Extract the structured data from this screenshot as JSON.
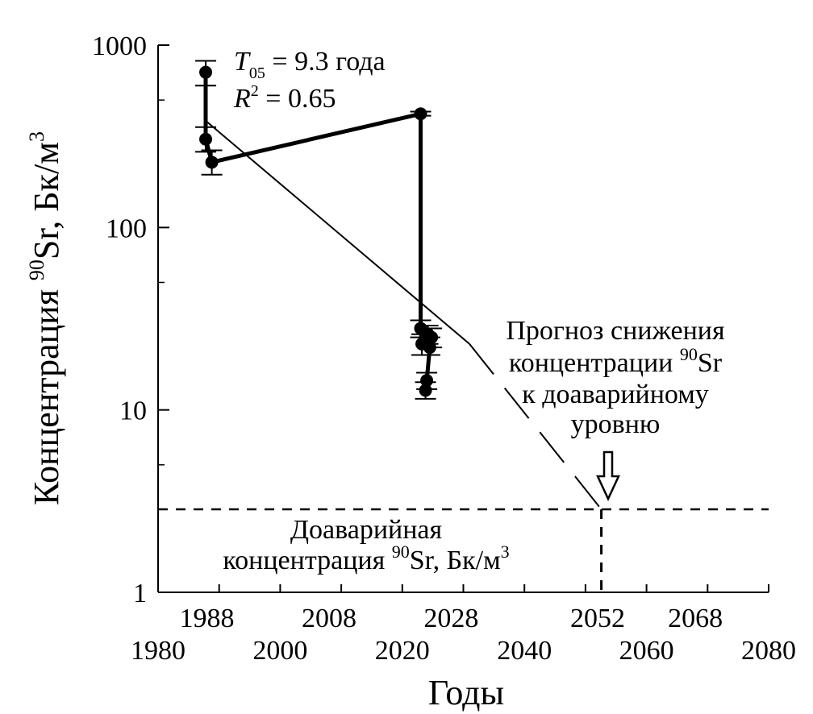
{
  "chart_data": {
    "type": "scatter",
    "title": "",
    "xlabel": "Годы",
    "ylabel": "Концентрация ⁹⁰Sr, Бк/м³",
    "y_scale": "log",
    "xlim": [
      1980,
      2080
    ],
    "ylim": [
      1,
      1000
    ],
    "grid": false,
    "x_ticks_lower": [
      "1980",
      "2000",
      "2020",
      "2040",
      "2060",
      "2080"
    ],
    "x_ticks_upper": [
      "1988",
      "2008",
      "2028",
      "2052",
      "2068"
    ],
    "y_ticks": [
      "1",
      "10",
      "100",
      "1000"
    ],
    "series": [
      {
        "points": [
          {
            "x": 1987.8,
            "y": 710,
            "err_low": 600,
            "err_high": 820
          },
          {
            "x": 1987.8,
            "y": 305,
            "err_low": 260,
            "err_high": 355
          },
          {
            "x": 1988.8,
            "y": 228,
            "err_low": 195,
            "err_high": 265
          },
          {
            "x": 2023.0,
            "y": 420,
            "err_low": 410,
            "err_high": 432
          },
          {
            "x": 2023.0,
            "y": 28,
            "err_low": 25,
            "err_high": 31
          },
          {
            "x": 2023.2,
            "y": 23,
            "err_low": 20,
            "err_high": 26
          },
          {
            "x": 2024.2,
            "y": 26,
            "err_low": 23,
            "err_high": 29
          },
          {
            "x": 2024.8,
            "y": 25,
            "err_low": 22,
            "err_high": 28
          },
          {
            "x": 2024.5,
            "y": 22,
            "err_low": 20,
            "err_high": 25
          },
          {
            "x": 2024.0,
            "y": 14.5,
            "err_low": 13,
            "err_high": 16
          },
          {
            "x": 2023.8,
            "y": 12.8,
            "err_low": 11.5,
            "err_high": 14.2
          }
        ],
        "connect_order": [
          0,
          1,
          2,
          3,
          4,
          5,
          6,
          7,
          8,
          9,
          10
        ]
      }
    ],
    "fit_line": {
      "x": [
        1988,
        2031
      ],
      "y": [
        380,
        23
      ]
    },
    "forecast_line": {
      "x": [
        2031,
        2052.6
      ],
      "y": [
        23,
        2.85
      ]
    },
    "preaccident_level": 2.85,
    "forecast_year": 2052.6,
    "annotations": {
      "fit_T": "T",
      "fit_T_sub": "05",
      "fit_T_rest": " = 9.3 года",
      "fit_R": "R",
      "fit_R_sup": "2",
      "fit_R_rest": " = 0.65",
      "forecast_line1": "Прогноз снижения",
      "forecast_line2_pre": "концентрации ",
      "forecast_line2_sup": "90",
      "forecast_line2_post": "Sr",
      "forecast_line3": "к доаварийному",
      "forecast_line4": "уровню",
      "pre_line1": "Доаварийная",
      "pre_line2_pre": "концентрация ",
      "pre_line2_sup": "90",
      "pre_line2_mid": "Sr, Бк/м",
      "pre_line2_sup2": "3"
    },
    "ylabel_parts": {
      "pre": "Концентрация ",
      "sup": "90",
      "mid": "Sr, Бк/м",
      "sup2": "3"
    }
  }
}
